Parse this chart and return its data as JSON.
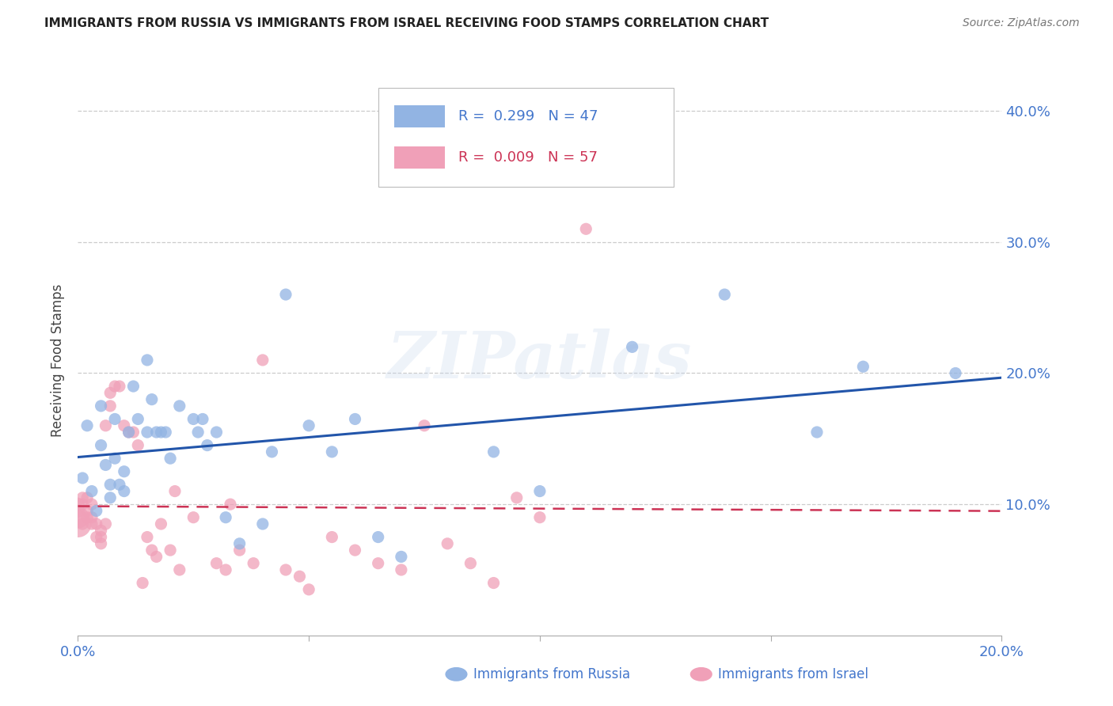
{
  "title": "IMMIGRANTS FROM RUSSIA VS IMMIGRANTS FROM ISRAEL RECEIVING FOOD STAMPS CORRELATION CHART",
  "source": "Source: ZipAtlas.com",
  "ylabel": "Receiving Food Stamps",
  "xlim": [
    0.0,
    0.2
  ],
  "ylim": [
    0.0,
    0.42
  ],
  "xticks": [
    0.0,
    0.05,
    0.1,
    0.15,
    0.2
  ],
  "xticklabels": [
    "0.0%",
    "",
    "",
    "",
    "20.0%"
  ],
  "yticks": [
    0.1,
    0.2,
    0.3,
    0.4
  ],
  "yticklabels": [
    "10.0%",
    "20.0%",
    "30.0%",
    "40.0%"
  ],
  "russia_color": "#92B4E3",
  "israel_color": "#F0A0B8",
  "russia_R": 0.299,
  "russia_N": 47,
  "israel_R": 0.009,
  "israel_N": 57,
  "russia_line_color": "#2255AA",
  "israel_line_color": "#CC3355",
  "tick_label_color": "#4477CC",
  "grid_color": "#CCCCCC",
  "background_color": "#FFFFFF",
  "watermark": "ZIPatlas",
  "russia_x": [
    0.001,
    0.002,
    0.003,
    0.005,
    0.005,
    0.006,
    0.007,
    0.007,
    0.008,
    0.008,
    0.009,
    0.01,
    0.011,
    0.012,
    0.013,
    0.015,
    0.016,
    0.017,
    0.018,
    0.019,
    0.02,
    0.022,
    0.025,
    0.027,
    0.028,
    0.03,
    0.032,
    0.035,
    0.04,
    0.042,
    0.045,
    0.05,
    0.055,
    0.06,
    0.065,
    0.07,
    0.09,
    0.1,
    0.12,
    0.14,
    0.16,
    0.17,
    0.19,
    0.004,
    0.01,
    0.015,
    0.026
  ],
  "russia_y": [
    0.12,
    0.16,
    0.11,
    0.145,
    0.175,
    0.13,
    0.115,
    0.105,
    0.165,
    0.135,
    0.115,
    0.125,
    0.155,
    0.19,
    0.165,
    0.21,
    0.18,
    0.155,
    0.155,
    0.155,
    0.135,
    0.175,
    0.165,
    0.165,
    0.145,
    0.155,
    0.09,
    0.07,
    0.085,
    0.14,
    0.26,
    0.16,
    0.14,
    0.165,
    0.075,
    0.06,
    0.14,
    0.11,
    0.22,
    0.26,
    0.155,
    0.205,
    0.2,
    0.095,
    0.11,
    0.155,
    0.155
  ],
  "israel_x": [
    0.0,
    0.0,
    0.0,
    0.0,
    0.001,
    0.001,
    0.001,
    0.002,
    0.002,
    0.002,
    0.003,
    0.003,
    0.003,
    0.004,
    0.004,
    0.005,
    0.005,
    0.005,
    0.006,
    0.006,
    0.007,
    0.007,
    0.008,
    0.009,
    0.01,
    0.011,
    0.012,
    0.013,
    0.014,
    0.015,
    0.016,
    0.017,
    0.018,
    0.02,
    0.021,
    0.022,
    0.025,
    0.03,
    0.032,
    0.033,
    0.035,
    0.038,
    0.04,
    0.045,
    0.048,
    0.05,
    0.055,
    0.06,
    0.065,
    0.07,
    0.075,
    0.08,
    0.085,
    0.09,
    0.095,
    0.1,
    0.11
  ],
  "israel_y": [
    0.085,
    0.09,
    0.095,
    0.1,
    0.085,
    0.1,
    0.105,
    0.09,
    0.095,
    0.105,
    0.085,
    0.09,
    0.1,
    0.075,
    0.085,
    0.07,
    0.075,
    0.08,
    0.085,
    0.16,
    0.175,
    0.185,
    0.19,
    0.19,
    0.16,
    0.155,
    0.155,
    0.145,
    0.04,
    0.075,
    0.065,
    0.06,
    0.085,
    0.065,
    0.11,
    0.05,
    0.09,
    0.055,
    0.05,
    0.1,
    0.065,
    0.055,
    0.21,
    0.05,
    0.045,
    0.035,
    0.075,
    0.065,
    0.055,
    0.05,
    0.16,
    0.07,
    0.055,
    0.04,
    0.105,
    0.09,
    0.31
  ],
  "israel_sizes": [
    600,
    400,
    150,
    150,
    120,
    120,
    120,
    120,
    120,
    120,
    120,
    120,
    120,
    120,
    120,
    120,
    120,
    120,
    120,
    120,
    120,
    120,
    120,
    120,
    120,
    120,
    120,
    120,
    120,
    120,
    120,
    120,
    120,
    120,
    120,
    120,
    120,
    120,
    120,
    120,
    120,
    120,
    120,
    120,
    120,
    120,
    120,
    120,
    120,
    120,
    120,
    120,
    120,
    120,
    120,
    120,
    120
  ],
  "russia_size": 120
}
